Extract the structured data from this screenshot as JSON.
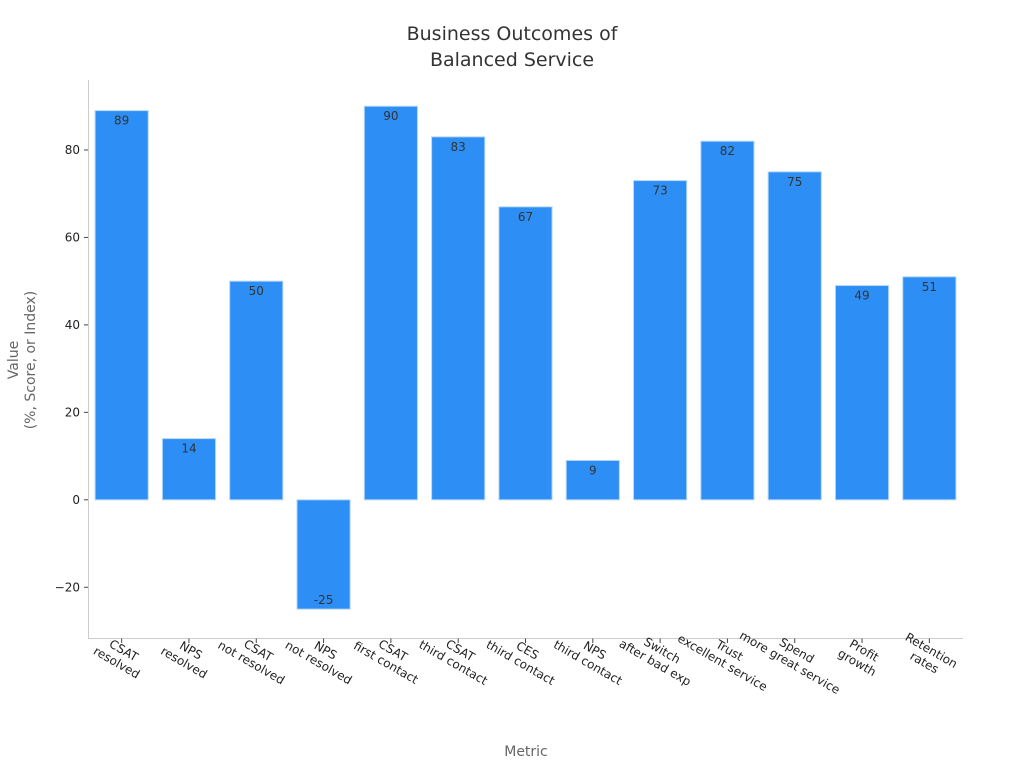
{
  "chart_data": {
    "type": "bar",
    "title": [
      "Business Outcomes of",
      "Balanced Service"
    ],
    "xlabel": "Metric",
    "ylabel": [
      "Value",
      "(%, Score, or Index)"
    ],
    "ylim": [
      -31.6,
      96
    ],
    "yticks": [
      -20,
      0,
      20,
      40,
      60,
      80
    ],
    "ytick_labels": [
      "−20",
      "0",
      "20",
      "40",
      "60",
      "80"
    ],
    "categories": [
      [
        "CSAT",
        "resolved"
      ],
      [
        "NPS",
        "resolved"
      ],
      [
        "CSAT",
        "not resolved"
      ],
      [
        "NPS",
        "not resolved"
      ],
      [
        "CSAT",
        "first contact"
      ],
      [
        "CSAT",
        "third contact"
      ],
      [
        "CES",
        "third contact"
      ],
      [
        "NPS",
        "third contact"
      ],
      [
        "Switch",
        "after bad exp"
      ],
      [
        "Trust",
        "excellent service"
      ],
      [
        "Spend",
        "more great service"
      ],
      [
        "Profit",
        "growth"
      ],
      [
        "Retention",
        "rates"
      ]
    ],
    "values": [
      89,
      14,
      50,
      -25,
      90,
      83,
      67,
      9,
      73,
      82,
      75,
      49,
      51
    ],
    "value_labels": [
      "89",
      "14",
      "50",
      "-25",
      "90",
      "83",
      "67",
      "9",
      "73",
      "82",
      "75",
      "49",
      "51"
    ],
    "bar_color": "#2d8ff6",
    "grid": false,
    "legend": "none"
  }
}
